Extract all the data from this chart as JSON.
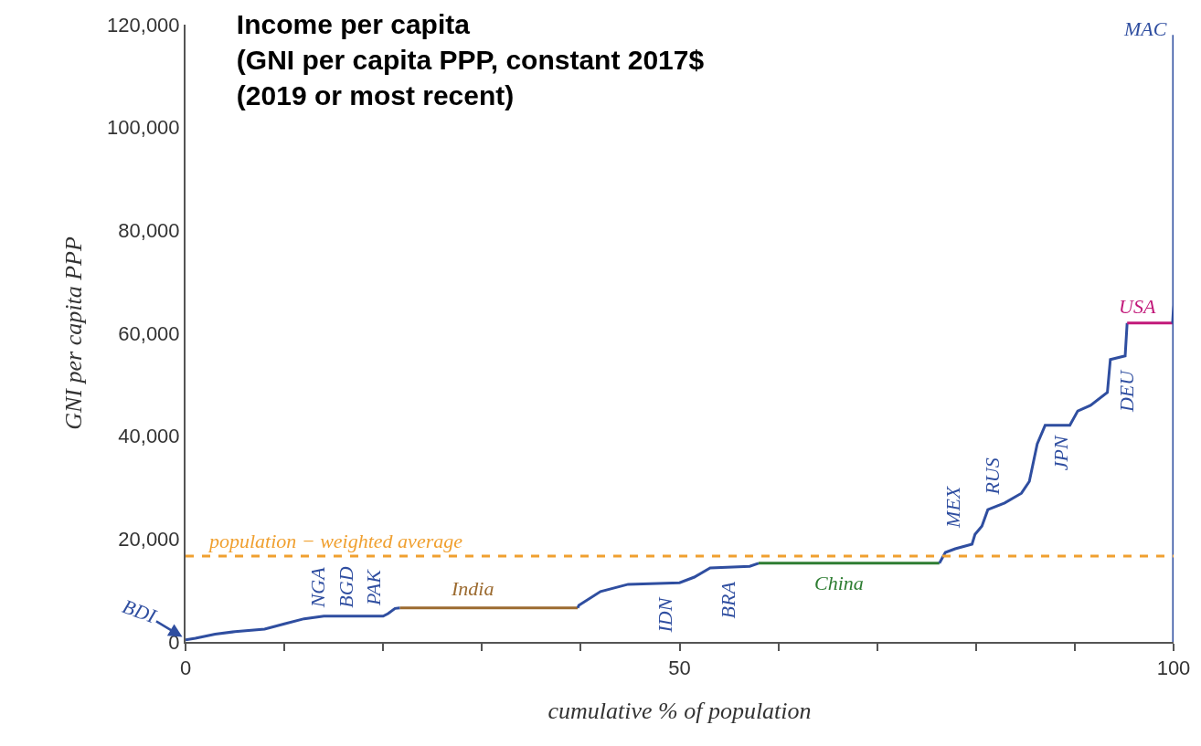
{
  "chart_data": {
    "type": "line",
    "title": "Income per capita\n(GNI per capita PPP, constant 2017$\n(2019 or most recent)",
    "xlabel": "cumulative % of population",
    "ylabel": "GNI per capita PPP",
    "series": [
      {
        "color": "#2f4ea0",
        "x": [
          0,
          1,
          3,
          5,
          8,
          10,
          12,
          14,
          20,
          20.5,
          21.2,
          21.7
        ],
        "values": [
          400,
          700,
          1500,
          2000,
          2500,
          3500,
          4500,
          5000,
          5000,
          5500,
          6500,
          6600
        ]
      },
      {
        "color": "#9c6b30",
        "x": [
          21.7,
          39.7
        ],
        "values": [
          6600,
          6600
        ]
      },
      {
        "color": "#2f4ea0",
        "x": [
          39.7,
          39.8,
          42.0,
          44.8,
          50.0,
          51.5,
          53.1,
          57.1,
          58.0
        ],
        "values": [
          6600,
          7100,
          9800,
          11200,
          11500,
          12600,
          14400,
          14700,
          15300
        ]
      },
      {
        "color": "#2e7d32",
        "x": [
          58.0,
          76.3
        ],
        "values": [
          15300,
          15300
        ]
      },
      {
        "color": "#2f4ea0",
        "x": [
          76.3,
          76.9,
          77.9,
          79.6,
          79.9,
          80.6,
          81.2,
          82.9,
          84.6,
          85.4,
          86.2,
          87.0,
          89.5,
          90.3,
          91.6,
          93.3,
          93.6,
          95.1,
          95.3
        ],
        "values": [
          15300,
          17400,
          18100,
          19000,
          20900,
          22500,
          25700,
          27000,
          28900,
          31200,
          38500,
          42100,
          42100,
          44900,
          46000,
          48500,
          54900,
          55600,
          62000
        ]
      },
      {
        "color": "#c2197a",
        "x": [
          95.3,
          99.9
        ],
        "values": [
          62000,
          62000
        ]
      },
      {
        "color": "#2f4ea0",
        "x": [
          99.9,
          100,
          100,
          100,
          100
        ],
        "values": [
          62000,
          65500,
          88000,
          118000,
          0
        ]
      }
    ],
    "xlim": [
      0,
      100
    ],
    "xticks": [
      0,
      {
        "value": 10,
        "label": null
      },
      {
        "value": 20,
        "label": null
      },
      {
        "value": 30,
        "label": null
      },
      {
        "value": 40,
        "label": null
      },
      50,
      {
        "value": 60,
        "label": null
      },
      {
        "value": 70,
        "label": null
      },
      {
        "value": 80,
        "label": null
      },
      {
        "value": 90,
        "label": null
      },
      100
    ],
    "ylim": [
      0,
      120000
    ],
    "yticks": [
      0,
      {
        "value": 20000,
        "label": "20,000"
      },
      {
        "value": 40000,
        "label": "40,000"
      },
      {
        "value": 60000,
        "label": "60,000"
      },
      {
        "value": 80000,
        "label": "80,000"
      },
      {
        "value": 100000,
        "label": "100,000"
      },
      {
        "value": 120000,
        "label": "120,000"
      }
    ],
    "ref_lines": [
      {
        "axis": "y",
        "value": 16700,
        "label": "population − weighted average",
        "color": "#f0a030",
        "line_style": "dashed"
      }
    ],
    "annotations": [
      {
        "text": "BDI",
        "x": 0,
        "y": 600
      },
      "NGA",
      "BGD",
      "PAK",
      "India",
      "IDN",
      "BRA",
      "China",
      "MEX",
      "RUS",
      "JPN",
      "DEU",
      "USA",
      "MAC"
    ],
    "marker": "none",
    "line_style": "solid"
  }
}
